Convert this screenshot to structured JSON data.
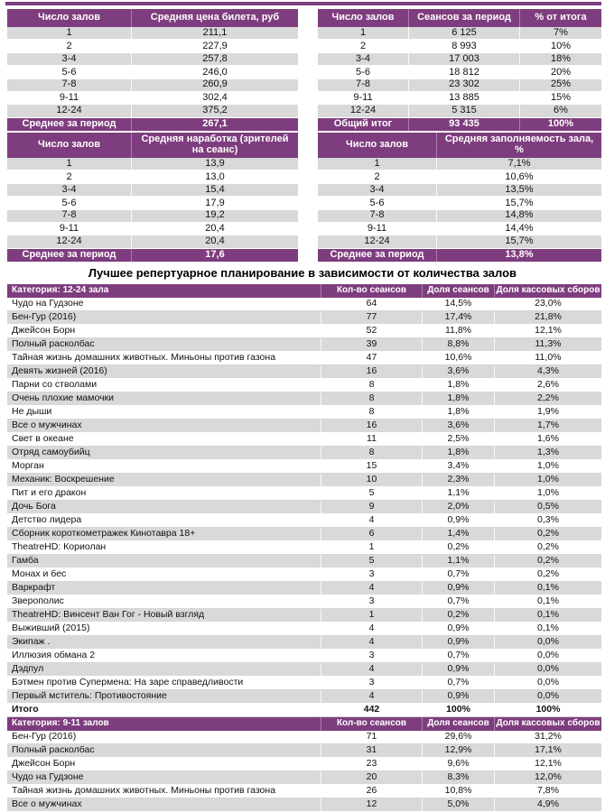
{
  "colors": {
    "accent": "#7E3D7E",
    "row_alt": "#D9D9D9"
  },
  "title": "Лучшее репертуарное планирование в зависимости от количества залов",
  "small_tables": [
    {
      "columns": [
        "Число залов",
        "Средняя цена билета, руб"
      ],
      "rows": [
        [
          "1",
          "211,1"
        ],
        [
          "2",
          "227,9"
        ],
        [
          "3-4",
          "257,8"
        ],
        [
          "5-6",
          "246,0"
        ],
        [
          "7-8",
          "260,9"
        ],
        [
          "9-11",
          "302,4"
        ],
        [
          "12-24",
          "375,2"
        ]
      ],
      "footer": [
        "Среднее за период",
        "267,1"
      ]
    },
    {
      "columns": [
        "Число залов",
        "Сеансов за период",
        "% от итога"
      ],
      "rows": [
        [
          "1",
          "6 125",
          "7%"
        ],
        [
          "2",
          "8 993",
          "10%"
        ],
        [
          "3-4",
          "17 003",
          "18%"
        ],
        [
          "5-6",
          "18 812",
          "20%"
        ],
        [
          "7-8",
          "23 302",
          "25%"
        ],
        [
          "9-11",
          "13 885",
          "15%"
        ],
        [
          "12-24",
          "5 315",
          "6%"
        ]
      ],
      "footer": [
        "Общий итог",
        "93 435",
        "100%"
      ]
    },
    {
      "columns": [
        "Число залов",
        "Средняя наработка (зрителей на сеанс)"
      ],
      "rows": [
        [
          "1",
          "13,9"
        ],
        [
          "2",
          "13,0"
        ],
        [
          "3-4",
          "15,4"
        ],
        [
          "5-6",
          "17,9"
        ],
        [
          "7-8",
          "19,2"
        ],
        [
          "9-11",
          "20,4"
        ],
        [
          "12-24",
          "20,4"
        ]
      ],
      "footer": [
        "Среднее за период",
        "17,6"
      ]
    },
    {
      "columns": [
        "Число залов",
        "Средняя заполняемость зала, %"
      ],
      "rows": [
        [
          "1",
          "7,1%"
        ],
        [
          "2",
          "10,6%"
        ],
        [
          "3-4",
          "13,5%"
        ],
        [
          "5-6",
          "15,7%"
        ],
        [
          "7-8",
          "14,8%"
        ],
        [
          "9-11",
          "14,4%"
        ],
        [
          "12-24",
          "15,7%"
        ]
      ],
      "footer": [
        "Среднее за период",
        "13,8%"
      ]
    }
  ],
  "repertoire_table": {
    "columns": [
      "Кол-во сеансов",
      "Доля сеансов",
      "Доля кассовых сборов"
    ],
    "sections": [
      {
        "category": "Категория: 12-24 зала",
        "rows": [
          [
            "Чудо на Гудзоне",
            "64",
            "14,5%",
            "23,0%"
          ],
          [
            "Бен-Гур (2016)",
            "77",
            "17,4%",
            "21,8%"
          ],
          [
            "Джейсон Борн",
            "52",
            "11,8%",
            "12,1%"
          ],
          [
            "Полный расколбас",
            "39",
            "8,8%",
            "11,3%"
          ],
          [
            "Тайная жизнь домашних животных. Миньоны против газона",
            "47",
            "10,6%",
            "11,0%"
          ],
          [
            "Девять жизней (2016)",
            "16",
            "3,6%",
            "4,3%"
          ],
          [
            "Парни со стволами",
            "8",
            "1,8%",
            "2,6%"
          ],
          [
            "Очень плохие мамочки",
            "8",
            "1,8%",
            "2,2%"
          ],
          [
            "Не дыши",
            "8",
            "1,8%",
            "1,9%"
          ],
          [
            "Все о мужчинах",
            "16",
            "3,6%",
            "1,7%"
          ],
          [
            "Свет в океане",
            "11",
            "2,5%",
            "1,6%"
          ],
          [
            "Отряд самоубийц",
            "8",
            "1,8%",
            "1,3%"
          ],
          [
            "Морган",
            "15",
            "3,4%",
            "1,0%"
          ],
          [
            "Механик: Воскрешение",
            "10",
            "2,3%",
            "1,0%"
          ],
          [
            "Пит и его дракон",
            "5",
            "1,1%",
            "1,0%"
          ],
          [
            "Дочь Бога",
            "9",
            "2,0%",
            "0,5%"
          ],
          [
            "Детство лидера",
            "4",
            "0,9%",
            "0,3%"
          ],
          [
            "Сборник короткометражек Кинотавра 18+",
            "6",
            "1,4%",
            "0,2%"
          ],
          [
            "TheatreHD: Кориолан",
            "1",
            "0,2%",
            "0,2%"
          ],
          [
            "Гамба",
            "5",
            "1,1%",
            "0,2%"
          ],
          [
            "Монах и бес",
            "3",
            "0,7%",
            "0,2%"
          ],
          [
            "Варкрафт",
            "4",
            "0,9%",
            "0,1%"
          ],
          [
            "Зверополис",
            "3",
            "0,7%",
            "0,1%"
          ],
          [
            "TheatreHD: Винсент Ван Гог - Новый взгляд",
            "1",
            "0,2%",
            "0,1%"
          ],
          [
            "Выживший (2015)",
            "4",
            "0,9%",
            "0,1%"
          ],
          [
            "Экипаж .",
            "4",
            "0,9%",
            "0,0%"
          ],
          [
            "Иллюзия обмана 2",
            "3",
            "0,7%",
            "0,0%"
          ],
          [
            "Дэдпул",
            "4",
            "0,9%",
            "0,0%"
          ],
          [
            "Бэтмен против Супермена: На заре справедливости",
            "3",
            "0,7%",
            "0,0%"
          ],
          [
            "Первый мститель: Противостояние",
            "4",
            "0,9%",
            "0,0%"
          ]
        ],
        "total": [
          "Итого",
          "442",
          "100%",
          "100%"
        ]
      },
      {
        "category": "Категория: 9-11 залов",
        "rows": [
          [
            "Бен-Гур (2016)",
            "71",
            "29,6%",
            "31,2%"
          ],
          [
            "Полный расколбас",
            "31",
            "12,9%",
            "17,1%"
          ],
          [
            "Джейсон Борн",
            "23",
            "9,6%",
            "12,1%"
          ],
          [
            "Чудо на Гудзоне",
            "20",
            "8,3%",
            "12,0%"
          ],
          [
            "Тайная жизнь домашних животных. Миньоны против газона",
            "26",
            "10,8%",
            "7,8%"
          ],
          [
            "Все о мужчинах",
            "12",
            "5,0%",
            "4,9%"
          ]
        ]
      }
    ]
  }
}
